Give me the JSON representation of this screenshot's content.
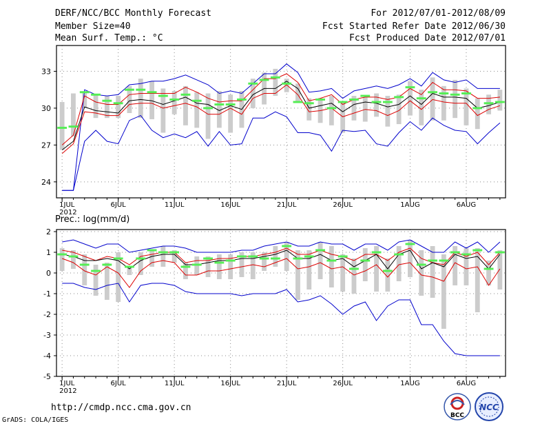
{
  "header": {
    "title": "DERF/NCC/BCC Monthly Forecast",
    "members": "Member Size=40",
    "variable": "Mean Surf. Temp.: °C",
    "period": "For 2012/07/01-2012/08/09",
    "fcst_started": "Fcst Started Refer Date 2012/06/30",
    "fcst_produced": "Fcst Produced Date 2012/07/01"
  },
  "footer": {
    "url": "http://cmdp.ncc.cma.gov.cn",
    "credit": "GrADS: COLA/IGES",
    "logo_bcc": "BCC",
    "logo_ncc": "NCC"
  },
  "colors": {
    "max": "#0000cc",
    "min": "#0000cc",
    "p90": "#dd0000",
    "p10": "#dd0000",
    "mean": "#000000",
    "obs": "#55ee55",
    "box": "#cccccc"
  },
  "chart_data": [
    {
      "type": "line",
      "title": "Mean Surf. Temp.: °C",
      "xlabel": "",
      "ylabel": "",
      "x": [
        1,
        2,
        3,
        4,
        5,
        6,
        7,
        8,
        9,
        10,
        11,
        12,
        13,
        14,
        15,
        16,
        17,
        18,
        19,
        20,
        21,
        22,
        23,
        24,
        25,
        26,
        27,
        28,
        29,
        30,
        31,
        32,
        33,
        34,
        35,
        36,
        37,
        38,
        39,
        40
      ],
      "xlim": [
        0.5,
        40.5
      ],
      "ylim": [
        22.7,
        35.1
      ],
      "yticks": [
        24,
        27,
        30,
        33
      ],
      "ytick_labels": [
        "24",
        "27",
        "30",
        "33"
      ],
      "xticks": [
        1,
        6,
        11,
        16,
        21,
        26,
        32,
        37
      ],
      "xtick_labels": [
        "1JUL",
        "6JUL",
        "11JUL",
        "16JUL",
        "21JUL",
        "26JUL",
        "1AUG",
        "6AUG"
      ],
      "xtick_sublabel": "2012",
      "series": [
        {
          "name": "max",
          "values": [
            23.3,
            23.3,
            31.5,
            31.1,
            31.0,
            31.1,
            31.9,
            32.0,
            32.2,
            32.2,
            32.4,
            32.7,
            32.3,
            31.9,
            31.2,
            31.4,
            31.2,
            32.0,
            32.8,
            32.8,
            33.6,
            32.9,
            31.3,
            31.4,
            31.6,
            30.8,
            31.4,
            31.6,
            31.8,
            31.6,
            31.9,
            32.4,
            31.8,
            32.9,
            32.3,
            32.1,
            32.3,
            31.6,
            31.6,
            31.6
          ]
        },
        {
          "name": "p90",
          "values": [
            27.0,
            27.8,
            31.0,
            30.5,
            30.3,
            30.3,
            31.1,
            31.2,
            31.2,
            31.2,
            31.2,
            31.7,
            31.3,
            30.8,
            30.5,
            30.6,
            30.6,
            31.5,
            32.4,
            32.4,
            32.8,
            32.1,
            30.6,
            30.8,
            31.1,
            30.3,
            30.7,
            30.9,
            30.9,
            30.7,
            30.9,
            31.6,
            31.1,
            32.1,
            31.5,
            31.5,
            31.4,
            30.8,
            30.8,
            30.9
          ]
        },
        {
          "name": "mean",
          "values": [
            26.6,
            27.3,
            30.1,
            29.8,
            29.7,
            29.6,
            30.6,
            30.7,
            30.6,
            30.3,
            30.6,
            30.9,
            30.4,
            30.3,
            29.8,
            30.2,
            29.9,
            31.1,
            31.6,
            31.6,
            32.2,
            31.6,
            30.0,
            30.2,
            30.4,
            29.7,
            30.3,
            30.5,
            30.4,
            30.1,
            30.3,
            31.0,
            30.3,
            31.2,
            30.9,
            30.9,
            30.8,
            30.0,
            30.2,
            30.5
          ]
        },
        {
          "name": "p10",
          "values": [
            26.3,
            27.1,
            29.7,
            29.6,
            29.4,
            29.4,
            30.3,
            30.4,
            30.4,
            30.0,
            30.2,
            30.4,
            30.1,
            29.5,
            29.5,
            30.0,
            29.5,
            30.8,
            31.2,
            31.2,
            31.9,
            31.1,
            29.7,
            29.8,
            30.0,
            29.3,
            29.6,
            29.9,
            29.8,
            29.4,
            29.8,
            30.6,
            29.9,
            30.7,
            30.5,
            30.4,
            30.4,
            29.4,
            29.9,
            30.2
          ]
        },
        {
          "name": "min",
          "values": [
            23.3,
            23.3,
            27.3,
            28.2,
            27.3,
            27.1,
            29.0,
            29.4,
            28.2,
            27.6,
            27.9,
            27.6,
            28.1,
            26.9,
            28.1,
            27.0,
            27.1,
            29.2,
            29.2,
            29.7,
            29.3,
            28.0,
            28.0,
            27.8,
            26.5,
            28.2,
            28.1,
            28.2,
            27.1,
            26.9,
            28.0,
            28.9,
            28.2,
            29.2,
            28.6,
            28.2,
            28.1,
            27.1,
            28.0,
            28.8
          ]
        }
      ],
      "boxes": [
        [
          26.6,
          30.5
        ],
        [
          27.7,
          31.2
        ],
        [
          30.0,
          31.3
        ],
        [
          29.2,
          31.1
        ],
        [
          29.2,
          31.0
        ],
        [
          29.2,
          31.0
        ],
        [
          29.6,
          31.8
        ],
        [
          29.2,
          32.4
        ],
        [
          29.1,
          32.2
        ],
        [
          28.0,
          31.6
        ],
        [
          29.5,
          31.4
        ],
        [
          28.6,
          31.8
        ],
        [
          28.4,
          31.3
        ],
        [
          27.5,
          31.2
        ],
        [
          28.4,
          31.4
        ],
        [
          28.0,
          31.1
        ],
        [
          28.4,
          31.4
        ],
        [
          30.0,
          32.4
        ],
        [
          30.3,
          32.9
        ],
        [
          31.0,
          33.2
        ],
        [
          31.3,
          32.4
        ],
        [
          30.5,
          32.0
        ],
        [
          29.0,
          30.8
        ],
        [
          28.8,
          30.8
        ],
        [
          28.6,
          31.0
        ],
        [
          28.0,
          30.5
        ],
        [
          29.0,
          31.0
        ],
        [
          28.9,
          30.9
        ],
        [
          29.3,
          31.2
        ],
        [
          28.5,
          31.0
        ],
        [
          28.7,
          31.1
        ],
        [
          29.4,
          32.2
        ],
        [
          28.6,
          31.5
        ],
        [
          29.0,
          32.5
        ],
        [
          29.0,
          31.8
        ],
        [
          29.2,
          32.3
        ],
        [
          28.6,
          31.6
        ],
        [
          28.3,
          30.8
        ],
        [
          29.5,
          31.1
        ],
        [
          29.8,
          31.5
        ]
      ],
      "observed": [
        28.4,
        28.5,
        31.3,
        31.1,
        30.6,
        30.4,
        31.5,
        31.5,
        31.3,
        31.0,
        30.7,
        31.1,
        30.6,
        30.0,
        30.3,
        30.3,
        30.7,
        32.0,
        32.3,
        32.5,
        32.0,
        30.5,
        30.4,
        30.7,
        30.0,
        30.5,
        30.7,
        31.0,
        30.5,
        30.5,
        30.9,
        31.7,
        30.8,
        31.3,
        31.2,
        31.1,
        31.2,
        30.0,
        30.4,
        30.5
      ]
    },
    {
      "type": "line",
      "title": "Prec.: log(mm/d)",
      "xlabel": "",
      "ylabel": "",
      "x": [
        1,
        2,
        3,
        4,
        5,
        6,
        7,
        8,
        9,
        10,
        11,
        12,
        13,
        14,
        15,
        16,
        17,
        18,
        19,
        20,
        21,
        22,
        23,
        24,
        25,
        26,
        27,
        28,
        29,
        30,
        31,
        32,
        33,
        34,
        35,
        36,
        37,
        38,
        39,
        40
      ],
      "xlim": [
        0.5,
        40.5
      ],
      "ylim": [
        -5,
        2.1
      ],
      "yticks": [
        -5,
        -4,
        -3,
        -2,
        -1,
        0,
        1,
        2
      ],
      "ytick_labels": [
        "-5",
        "-4",
        "-3",
        "-2",
        "-1",
        "0",
        "1",
        "2"
      ],
      "xticks": [
        1,
        6,
        11,
        16,
        21,
        26,
        32,
        37
      ],
      "xtick_labels": [
        "1JUL",
        "6JUL",
        "11JUL",
        "16JUL",
        "21JUL",
        "26JUL",
        "1AUG",
        "6AUG"
      ],
      "xtick_sublabel": "2012",
      "series": [
        {
          "name": "max",
          "values": [
            1.5,
            1.6,
            1.4,
            1.2,
            1.4,
            1.4,
            1.0,
            1.1,
            1.2,
            1.3,
            1.3,
            1.2,
            1.0,
            1.0,
            1.0,
            1.0,
            1.1,
            1.1,
            1.3,
            1.4,
            1.5,
            1.3,
            1.3,
            1.5,
            1.4,
            1.4,
            1.1,
            1.4,
            1.4,
            1.1,
            1.5,
            1.6,
            1.3,
            1.0,
            1.0,
            1.5,
            1.2,
            1.5,
            1.0,
            1.5
          ]
        },
        {
          "name": "p90",
          "values": [
            1.1,
            1.0,
            0.8,
            0.6,
            0.8,
            0.7,
            0.4,
            0.8,
            0.9,
            1.0,
            1.0,
            0.5,
            0.6,
            0.6,
            0.7,
            0.7,
            0.8,
            0.8,
            0.9,
            1.0,
            1.2,
            0.9,
            0.9,
            1.1,
            0.9,
            0.8,
            0.6,
            0.9,
            0.9,
            0.6,
            1.0,
            1.2,
            0.7,
            0.5,
            0.4,
            1.0,
            0.8,
            1.0,
            0.4,
            1.0
          ]
        },
        {
          "name": "mean",
          "values": [
            0.9,
            0.8,
            0.6,
            0.6,
            0.7,
            0.6,
            0.2,
            0.6,
            0.8,
            0.9,
            0.9,
            0.4,
            0.4,
            0.5,
            0.6,
            0.6,
            0.7,
            0.7,
            0.8,
            0.9,
            1.1,
            0.7,
            0.7,
            0.9,
            0.6,
            0.7,
            0.3,
            0.6,
            0.9,
            0.2,
            0.9,
            1.1,
            0.2,
            0.5,
            0.3,
            0.9,
            0.7,
            0.8,
            0.2,
            0.9
          ]
        },
        {
          "name": "p10",
          "values": [
            0.7,
            0.5,
            0.1,
            -0.1,
            0.3,
            0.0,
            -0.7,
            0.1,
            0.5,
            0.6,
            0.5,
            -0.1,
            -0.1,
            0.1,
            0.1,
            0.2,
            0.3,
            0.4,
            0.3,
            0.5,
            0.7,
            0.2,
            0.3,
            0.5,
            0.2,
            0.3,
            -0.1,
            0.1,
            0.4,
            -0.2,
            0.4,
            0.5,
            -0.1,
            -0.2,
            -0.4,
            0.5,
            0.2,
            0.3,
            -0.6,
            0.2
          ]
        },
        {
          "name": "min",
          "values": [
            -0.5,
            -0.5,
            -0.7,
            -0.8,
            -0.6,
            -0.5,
            -1.4,
            -0.6,
            -0.5,
            -0.5,
            -0.6,
            -0.9,
            -1.0,
            -1.0,
            -1.0,
            -1.0,
            -1.1,
            -1.0,
            -1.0,
            -1.0,
            -0.8,
            -1.4,
            -1.3,
            -1.1,
            -1.5,
            -2.0,
            -1.6,
            -1.4,
            -2.3,
            -1.6,
            -1.3,
            -1.3,
            -2.5,
            -2.5,
            -3.3,
            -3.9,
            -4.0,
            -4.0,
            -4.0,
            -4.0
          ]
        }
      ],
      "boxes": [
        [
          0.1,
          1.2
        ],
        [
          0.2,
          1.1
        ],
        [
          -0.6,
          0.9
        ],
        [
          -1.1,
          0.4
        ],
        [
          -1.3,
          0.5
        ],
        [
          -1.4,
          1.0
        ],
        [
          -0.1,
          0.3
        ],
        [
          -0.1,
          1.0
        ],
        [
          0.3,
          1.1
        ],
        [
          0.3,
          1.3
        ],
        [
          0.5,
          1.1
        ],
        [
          -0.3,
          0.5
        ],
        [
          -0.1,
          0.8
        ],
        [
          -0.2,
          0.8
        ],
        [
          -0.3,
          0.9
        ],
        [
          -0.3,
          0.9
        ],
        [
          -0.2,
          1.0
        ],
        [
          -0.3,
          1.0
        ],
        [
          0.1,
          1.0
        ],
        [
          0.3,
          1.3
        ],
        [
          0.1,
          1.5
        ],
        [
          -1.3,
          1.1
        ],
        [
          -0.8,
          1.1
        ],
        [
          -0.3,
          1.5
        ],
        [
          -0.7,
          1.3
        ],
        [
          -0.9,
          0.9
        ],
        [
          -1.0,
          0.7
        ],
        [
          -0.4,
          1.2
        ],
        [
          -0.9,
          1.3
        ],
        [
          -0.9,
          0.7
        ],
        [
          -0.4,
          1.3
        ],
        [
          -0.2,
          1.6
        ],
        [
          -1.1,
          1.1
        ],
        [
          -1.2,
          1.3
        ],
        [
          -2.7,
          0.9
        ],
        [
          -0.6,
          1.3
        ],
        [
          -0.6,
          1.2
        ],
        [
          -1.9,
          1.2
        ],
        [
          -0.6,
          0.6
        ],
        [
          -0.8,
          1.1
        ]
      ],
      "observed": [
        0.9,
        0.8,
        0.4,
        0.1,
        0.4,
        0.7,
        0.3,
        0.7,
        1.1,
        1.0,
        1.0,
        0.3,
        0.4,
        0.7,
        0.5,
        0.6,
        0.8,
        0.8,
        0.7,
        0.7,
        1.3,
        0.7,
        0.8,
        1.1,
        0.6,
        0.8,
        0.2,
        0.6,
        1.0,
        0.1,
        0.9,
        1.4,
        0.4,
        0.6,
        0.6,
        1.0,
        0.9,
        1.1,
        0.2,
        1.0
      ]
    }
  ]
}
